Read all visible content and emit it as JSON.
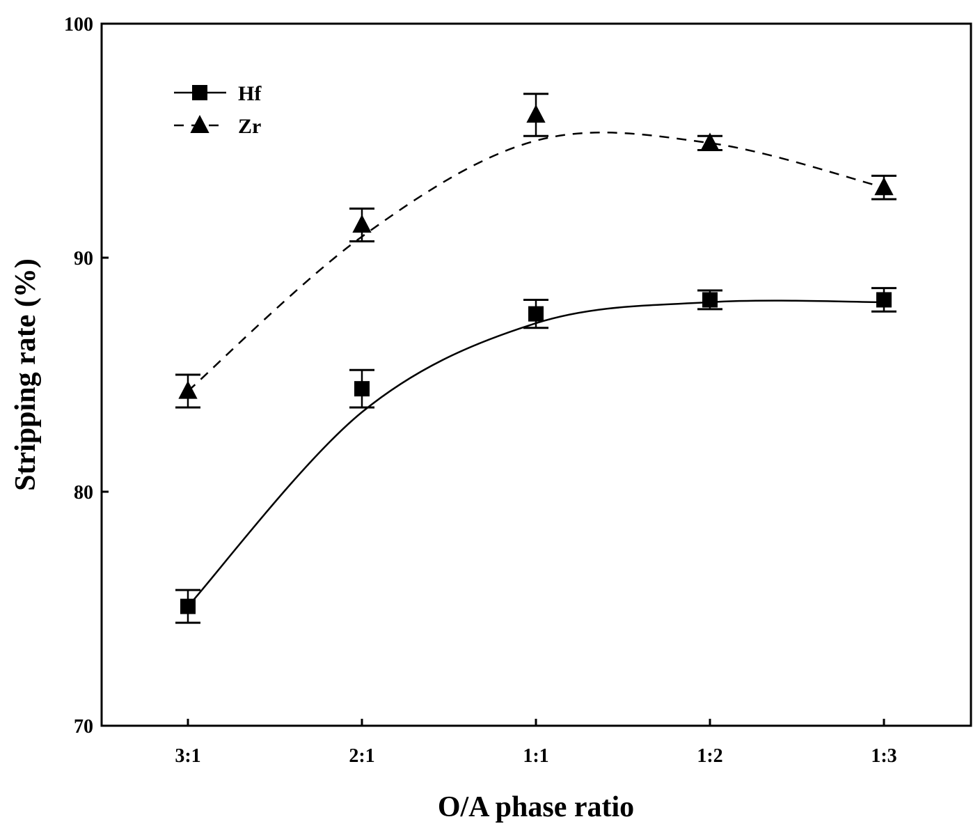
{
  "chart_data": {
    "type": "line",
    "title": "",
    "xlabel": "O/A phase ratio",
    "ylabel": "Stripping rate (%)",
    "categories": [
      "3:1",
      "2:1",
      "1:1",
      "1:2",
      "1:3"
    ],
    "ylim": [
      70,
      100
    ],
    "yticks": [
      70,
      80,
      90,
      100
    ],
    "grid": false,
    "legend_position": "top-left",
    "series": [
      {
        "name": "Hf",
        "marker": "square",
        "line_style": "solid",
        "values": [
          75.1,
          84.4,
          87.6,
          88.2,
          88.2
        ],
        "errors": [
          0.7,
          0.8,
          0.6,
          0.4,
          0.5
        ],
        "fit": [
          75.1,
          83.4,
          87.2,
          88.1,
          88.1
        ]
      },
      {
        "name": "Zr",
        "marker": "triangle",
        "line_style": "dashed",
        "values": [
          84.3,
          91.4,
          96.1,
          94.9,
          93.0
        ],
        "errors": [
          0.7,
          0.7,
          0.9,
          0.3,
          0.5
        ],
        "fit": [
          84.3,
          90.9,
          95.0,
          94.9,
          93.0
        ]
      }
    ]
  }
}
